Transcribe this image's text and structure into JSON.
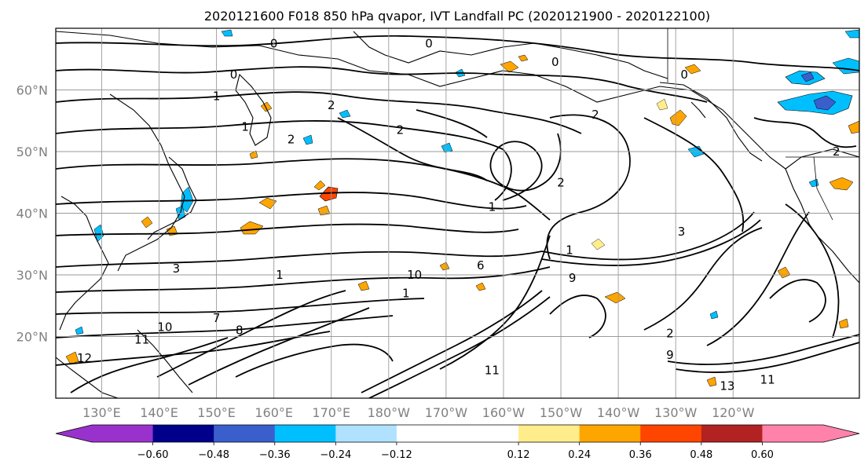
{
  "title": "2020121600 F018 850 hPa qvapor, IVT Landfall PC (2020121900 - 2020122100)",
  "map": {
    "projection": "PlateCarree",
    "extent": {
      "lon": [
        122,
        262
      ],
      "lat": [
        10,
        70
      ]
    },
    "lon_ticks": [
      {
        "lon": 130,
        "label": "130°E"
      },
      {
        "lon": 140,
        "label": "140°E"
      },
      {
        "lon": 150,
        "label": "150°E"
      },
      {
        "lon": 160,
        "label": "160°E"
      },
      {
        "lon": 170,
        "label": "170°E"
      },
      {
        "lon": 180,
        "label": "180°W"
      },
      {
        "lon": 190,
        "label": "170°W"
      },
      {
        "lon": 200,
        "label": "160°W"
      },
      {
        "lon": 210,
        "label": "150°W"
      },
      {
        "lon": 220,
        "label": "140°W"
      },
      {
        "lon": 230,
        "label": "130°W"
      },
      {
        "lon": 240,
        "label": "120°W"
      }
    ],
    "lat_ticks": [
      {
        "lat": 20,
        "label": "20°N"
      },
      {
        "lat": 30,
        "label": "30°N"
      },
      {
        "lat": 40,
        "label": "40°N"
      },
      {
        "lat": 50,
        "label": "50°N"
      },
      {
        "lat": 60,
        "label": "60°N"
      }
    ],
    "grid": true,
    "contour_color": "#000000",
    "contour_labels": [
      {
        "text": "0",
        "lon": 160,
        "lat": 67.5
      },
      {
        "text": "0",
        "lon": 187,
        "lat": 67.5
      },
      {
        "text": "0",
        "lon": 153,
        "lat": 62.5
      },
      {
        "text": "0",
        "lon": 209,
        "lat": 64.5
      },
      {
        "text": "0",
        "lon": 231.5,
        "lat": 62.5
      },
      {
        "text": "2",
        "lon": 170,
        "lat": 57.5
      },
      {
        "text": "2",
        "lon": 182,
        "lat": 53.5
      },
      {
        "text": "2",
        "lon": 163,
        "lat": 52
      },
      {
        "text": "2",
        "lon": 216,
        "lat": 56
      },
      {
        "text": "2",
        "lon": 258,
        "lat": 50
      },
      {
        "text": "2",
        "lon": 210,
        "lat": 45
      },
      {
        "text": "2",
        "lon": 229,
        "lat": 20.5
      },
      {
        "text": "1",
        "lon": 150,
        "lat": 59
      },
      {
        "text": "1",
        "lon": 155,
        "lat": 54
      },
      {
        "text": "1",
        "lon": 198,
        "lat": 41
      },
      {
        "text": "1",
        "lon": 211.5,
        "lat": 34
      },
      {
        "text": "1",
        "lon": 161,
        "lat": 30
      },
      {
        "text": "1",
        "lon": 183,
        "lat": 27
      },
      {
        "text": "3",
        "lon": 143,
        "lat": 31
      },
      {
        "text": "3",
        "lon": 231,
        "lat": 37
      },
      {
        "text": "6",
        "lon": 196,
        "lat": 31.5
      },
      {
        "text": "7",
        "lon": 150,
        "lat": 23
      },
      {
        "text": "8",
        "lon": 154,
        "lat": 21
      },
      {
        "text": "10",
        "lon": 141,
        "lat": 21.5
      },
      {
        "text": "10",
        "lon": 184.5,
        "lat": 30
      },
      {
        "text": "11",
        "lon": 137,
        "lat": 19.5
      },
      {
        "text": "11",
        "lon": 198,
        "lat": 14.5
      },
      {
        "text": "11",
        "lon": 246,
        "lat": 13
      },
      {
        "text": "12",
        "lon": 127,
        "lat": 16.5
      },
      {
        "text": "13",
        "lon": 239,
        "lat": 12
      },
      {
        "text": "9",
        "lon": 212,
        "lat": 29.5
      },
      {
        "text": "9",
        "lon": 229,
        "lat": 17
      }
    ]
  },
  "colorbar": {
    "vmin": -0.72,
    "vmax": 0.72,
    "bounds": [
      -0.72,
      -0.6,
      -0.48,
      -0.36,
      -0.24,
      -0.12,
      0.12,
      0.24,
      0.36,
      0.48,
      0.6,
      0.72
    ],
    "colors": [
      "#9932cc",
      "#00008b",
      "#3a5fcd",
      "#00bfff",
      "#b0e2ff",
      "#ffffff",
      "#ffec8b",
      "#ffa500",
      "#ff4500",
      "#b22222",
      "#ff82ab"
    ],
    "extend_min_color": "#9932cc",
    "extend_max_color": "#ff82ab",
    "ticks": [
      {
        "value": -0.6,
        "label": "−0.60"
      },
      {
        "value": -0.48,
        "label": "−0.48"
      },
      {
        "value": -0.36,
        "label": "−0.36"
      },
      {
        "value": -0.24,
        "label": "−0.24"
      },
      {
        "value": -0.12,
        "label": "−0.12"
      },
      {
        "value": 0.12,
        "label": "0.12"
      },
      {
        "value": 0.24,
        "label": "0.24"
      },
      {
        "value": 0.36,
        "label": "0.36"
      },
      {
        "value": 0.48,
        "label": "0.48"
      },
      {
        "value": 0.6,
        "label": "0.60"
      }
    ]
  }
}
